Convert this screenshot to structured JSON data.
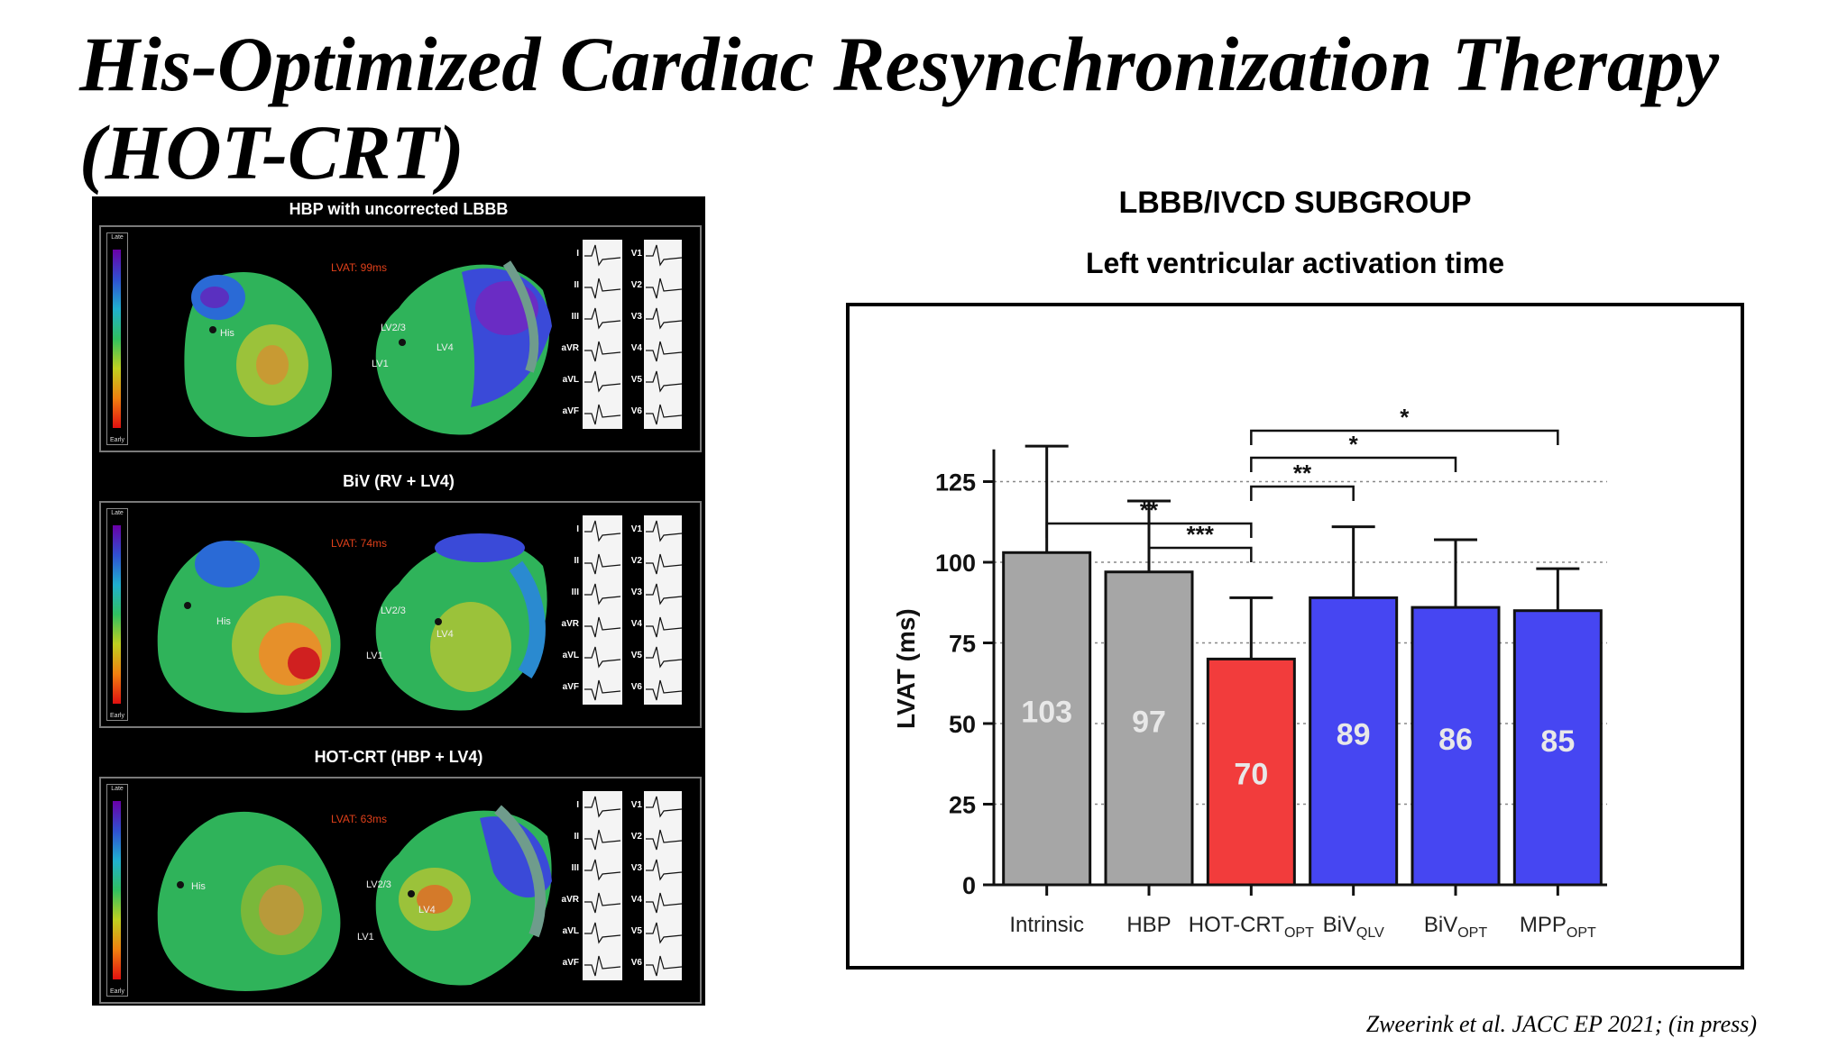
{
  "slide": {
    "title": "His-Optimized Cardiac Resynchronization Therapy (HOT-CRT)",
    "citation": "Zweerink  et al. JACC EP 2021; (in press)"
  },
  "maps": {
    "scale_late": "Late",
    "scale_early": "Early",
    "leads_left": [
      "I",
      "II",
      "III",
      "aVR",
      "aVL",
      "aVF"
    ],
    "leads_right": [
      "V1",
      "V2",
      "V3",
      "V4",
      "V5",
      "V6"
    ],
    "panels": [
      {
        "title": "HBP with uncorrected LBBB",
        "lvat": "LVAT: 99ms",
        "his": "His",
        "lv23": "LV2/3",
        "lv1": "LV1",
        "lv4": "LV4"
      },
      {
        "title": "BiV (RV + LV4)",
        "lvat": "LVAT: 74ms",
        "his": "His",
        "lv23": "LV2/3",
        "lv1": "LV1",
        "lv4": "LV4"
      },
      {
        "title": "HOT-CRT (HBP + LV4)",
        "lvat": "LVAT: 63ms",
        "his": "His",
        "lv23": "LV2/3",
        "lv1": "LV1",
        "lv4": "LV4"
      }
    ]
  },
  "chart_data": {
    "type": "bar",
    "title": "LBBB/IVCD SUBGROUP",
    "subtitle": "Left ventricular activation time",
    "ylabel": "LVAT (ms)",
    "ylim": [
      0,
      135
    ],
    "yticks": [
      0,
      25,
      50,
      75,
      100,
      125
    ],
    "gridlines": "dotted at each tick",
    "categories": [
      {
        "main": "Intrinsic",
        "sub": ""
      },
      {
        "main": "HBP",
        "sub": ""
      },
      {
        "main": "HOT-CRT",
        "sub": "OPT"
      },
      {
        "main": "BiV",
        "sub": "QLV"
      },
      {
        "main": "BiV",
        "sub": "OPT"
      },
      {
        "main": "MPP",
        "sub": "OPT"
      }
    ],
    "values": [
      103,
      97,
      70,
      89,
      86,
      85
    ],
    "value_labels": [
      "103",
      "97",
      "70",
      "89",
      "86",
      "85"
    ],
    "error_upper": [
      136,
      119,
      89,
      111,
      107,
      98
    ],
    "colors": [
      "#a6a6a6",
      "#a6a6a6",
      "#f23c3c",
      "#4646f2",
      "#4646f2",
      "#4646f2"
    ],
    "significance": [
      {
        "from": 0,
        "to": 2,
        "label": "**"
      },
      {
        "from": 1,
        "to": 2,
        "label": "***"
      },
      {
        "from": 2,
        "to": 3,
        "label": "**"
      },
      {
        "from": 2,
        "to": 4,
        "label": "*"
      },
      {
        "from": 2,
        "to": 5,
        "label": "*"
      }
    ]
  }
}
